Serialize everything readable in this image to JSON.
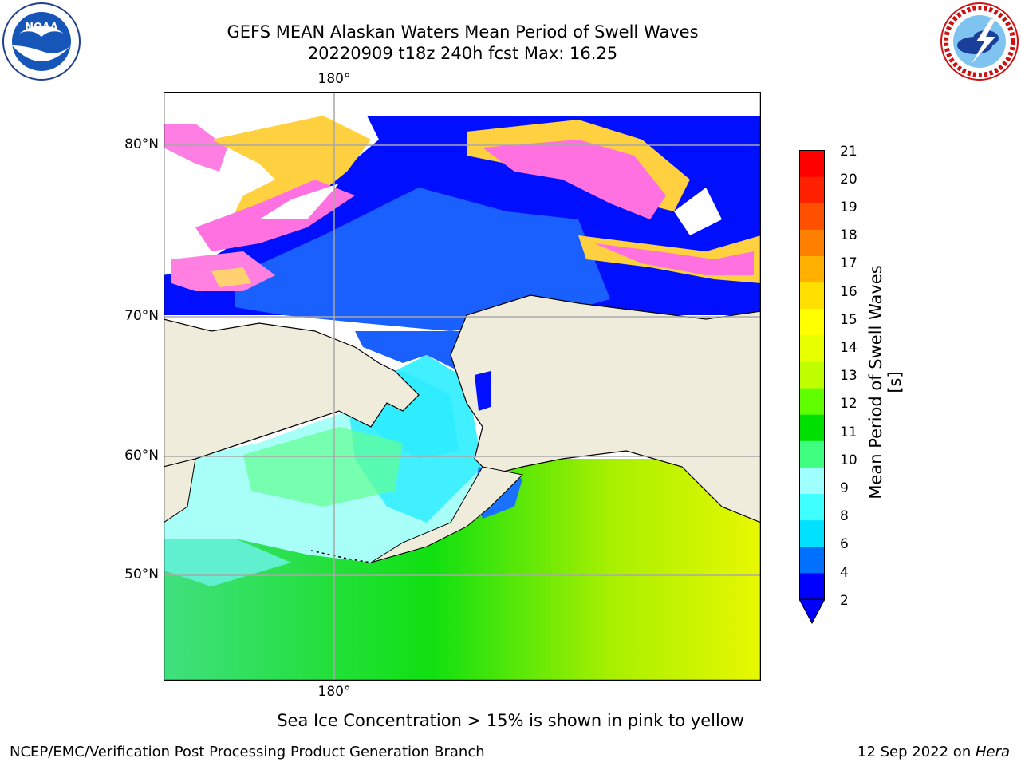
{
  "title": {
    "line1": "GEFS MEAN Alaskan Waters Mean Period of Swell Waves",
    "line2": "20220909 t18z 240h fcst   Max: 16.25"
  },
  "logos": {
    "left": {
      "text": "NOAA",
      "ring_text": "NATIONAL OCEANIC AND ATMOSPHERIC ADMINISTRATION · U.S. DEPARTMENT OF COMMERCE"
    },
    "right": {
      "ring_text": "NATIONAL WEATHER SERVICE"
    }
  },
  "map": {
    "lat_labels": [
      "80°N",
      "70°N",
      "60°N",
      "50°N"
    ],
    "lon_label_top": "180°",
    "lon_label_bottom": "180°",
    "colors": {
      "land": "#efecdc",
      "ice_pink": "#ff66d9",
      "ice_yellow": "#ffd040"
    }
  },
  "colorbar": {
    "label": "Mean Period of Swell Waves [s]",
    "ticks": [
      "21",
      "20",
      "19",
      "18",
      "17",
      "16",
      "15",
      "14",
      "13",
      "12",
      "11",
      "10",
      "9",
      "8",
      "6",
      "4",
      "2"
    ],
    "colors": [
      "#0000ff",
      "#0070ff",
      "#00e0ff",
      "#40ffff",
      "#a0ffff",
      "#40ff80",
      "#00e000",
      "#60ff00",
      "#c0ff00",
      "#e8ff00",
      "#ffff00",
      "#ffe000",
      "#ffb000",
      "#ff8000",
      "#ff5000",
      "#ff2000",
      "#ff0000"
    ],
    "extend_color": "#0000ff"
  },
  "caption": "Sea Ice Concentration > 15% is shown in pink to yellow",
  "footer": {
    "left": "NCEP/EMC/Verification Post Processing Product Generation Branch",
    "right_prefix": "12 Sep 2022 on ",
    "right_machine": "Hera"
  }
}
